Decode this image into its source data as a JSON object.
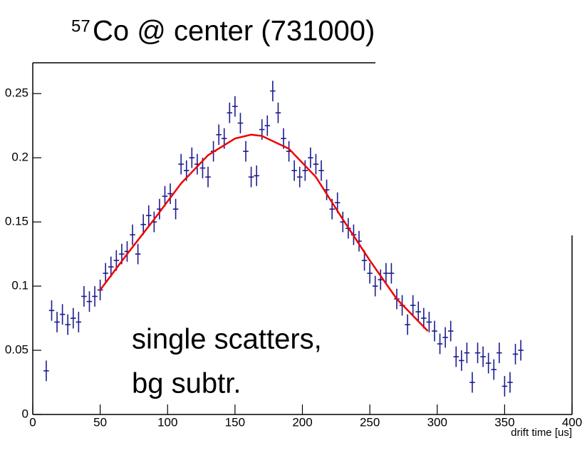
{
  "chart_data": {
    "type": "scatter",
    "title_superscript": "57",
    "title": "Co @ center (731000)",
    "xlabel": "drift time [us]",
    "annotations": [
      "single scatters,",
      "bg subtr."
    ],
    "x": [
      10,
      14,
      18,
      22,
      26,
      30,
      34,
      38,
      42,
      46,
      50,
      54,
      58,
      62,
      66,
      70,
      74,
      78,
      82,
      86,
      90,
      94,
      98,
      102,
      106,
      110,
      114,
      118,
      122,
      126,
      130,
      134,
      138,
      142,
      146,
      150,
      154,
      158,
      162,
      166,
      170,
      174,
      178,
      182,
      186,
      190,
      194,
      198,
      202,
      206,
      210,
      214,
      218,
      222,
      226,
      230,
      234,
      238,
      242,
      246,
      250,
      254,
      258,
      262,
      266,
      270,
      274,
      278,
      282,
      286,
      290,
      294,
      298,
      302,
      306,
      310,
      314,
      318,
      322,
      326,
      330,
      334,
      338,
      342,
      346,
      350,
      354,
      358,
      362
    ],
    "values": [
      0.034,
      0.081,
      0.072,
      0.078,
      0.07,
      0.075,
      0.072,
      0.092,
      0.088,
      0.092,
      0.097,
      0.11,
      0.115,
      0.12,
      0.125,
      0.127,
      0.14,
      0.125,
      0.148,
      0.155,
      0.15,
      0.16,
      0.17,
      0.172,
      0.16,
      0.195,
      0.19,
      0.2,
      0.195,
      0.192,
      0.185,
      0.205,
      0.218,
      0.215,
      0.235,
      0.24,
      0.227,
      0.205,
      0.185,
      0.186,
      0.222,
      0.225,
      0.252,
      0.235,
      0.215,
      0.205,
      0.19,
      0.185,
      0.19,
      0.2,
      0.195,
      0.19,
      0.175,
      0.16,
      0.165,
      0.15,
      0.145,
      0.14,
      0.135,
      0.12,
      0.11,
      0.1,
      0.105,
      0.11,
      0.11,
      0.09,
      0.085,
      0.07,
      0.085,
      0.08,
      0.075,
      0.072,
      0.065,
      0.055,
      0.06,
      0.065,
      0.045,
      0.042,
      0.048,
      0.025,
      0.048,
      0.045,
      0.04,
      0.035,
      0.048,
      0.022,
      0.025,
      0.047,
      0.05
    ],
    "yerr": 0.008,
    "xerr": 2,
    "color": "#1c1c8e",
    "fit": {
      "x": [
        50,
        70,
        90,
        110,
        130,
        150,
        162,
        170,
        190,
        210,
        230,
        250,
        270,
        293
      ],
      "values": [
        0.097,
        0.125,
        0.152,
        0.18,
        0.202,
        0.215,
        0.218,
        0.217,
        0.207,
        0.185,
        0.152,
        0.12,
        0.09,
        0.065
      ],
      "color": "#ee0000"
    },
    "xlim": [
      0,
      400
    ],
    "ylim": [
      0,
      0.274
    ],
    "xticks": [
      0,
      50,
      100,
      150,
      200,
      250,
      300,
      350,
      400
    ],
    "yticks": [
      0,
      0.05,
      0.1,
      0.15,
      0.2,
      0.25
    ]
  }
}
